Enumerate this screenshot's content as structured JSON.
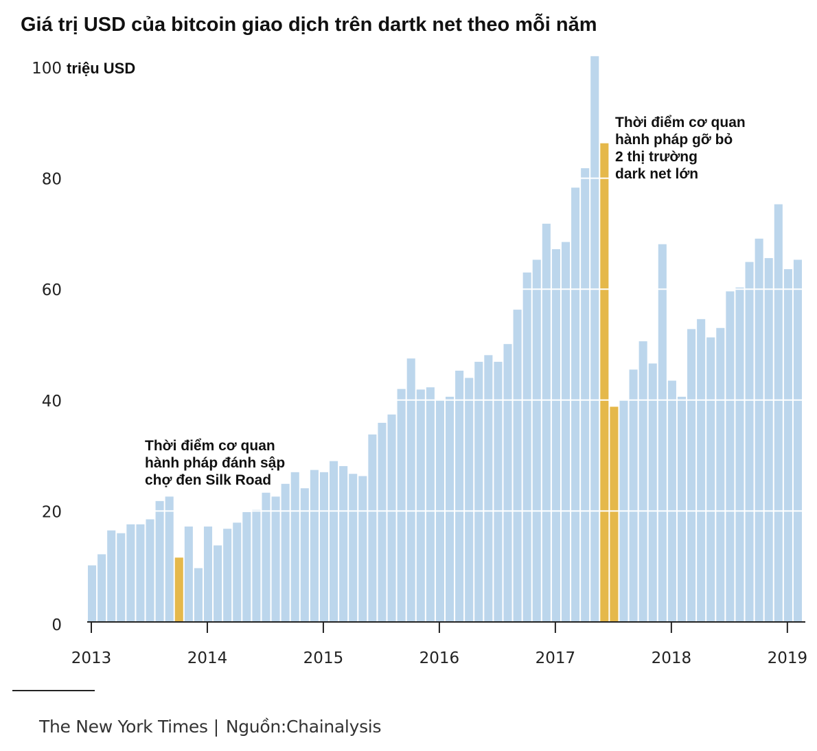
{
  "title": "Giá trị USD của bitcoin giao dịch trên dartk net theo mỗi năm",
  "footer": {
    "publisher": "The New York Times",
    "separator": "|",
    "source_label": "Nguồn:",
    "source_name": "Chainalysis"
  },
  "colors": {
    "bar": "#bcd6ec",
    "highlight": "#e5b84a",
    "gridline": "#ffffff",
    "axis": "#222222"
  },
  "chart_data": {
    "type": "bar",
    "title": "Giá trị USD của bitcoin giao dịch trên dartk net theo mỗi năm",
    "ylabel": "triệu USD",
    "xlabel": "",
    "ylim": [
      0,
      102
    ],
    "yticks": [
      {
        "value": 0,
        "label": "0"
      },
      {
        "value": 20,
        "label": "20"
      },
      {
        "value": 40,
        "label": "40"
      },
      {
        "value": 60,
        "label": "60"
      },
      {
        "value": 80,
        "label": "80"
      },
      {
        "value": 100,
        "label": "100"
      }
    ],
    "xticks": [
      {
        "index": 0,
        "label": "2013"
      },
      {
        "index": 12,
        "label": "2014"
      },
      {
        "index": 24,
        "label": "2015"
      },
      {
        "index": 36,
        "label": "2016"
      },
      {
        "index": 48,
        "label": "2017"
      },
      {
        "index": 60,
        "label": "2018"
      },
      {
        "index": 72,
        "label": "2019"
      }
    ],
    "grid": true,
    "frequency": "monthly",
    "start": "2013-01",
    "values": [
      10.2,
      12.2,
      16.5,
      16.0,
      17.6,
      17.6,
      18.5,
      21.8,
      22.6,
      11.6,
      17.2,
      9.7,
      17.2,
      13.8,
      16.8,
      17.9,
      19.8,
      20.2,
      23.3,
      22.6,
      24.9,
      27.0,
      24.1,
      27.4,
      27.0,
      29.0,
      28.1,
      26.7,
      26.3,
      33.8,
      35.9,
      37.4,
      42.0,
      47.5,
      41.9,
      42.3,
      40.1,
      40.6,
      45.3,
      44.0,
      46.9,
      48.1,
      46.9,
      50.1,
      56.3,
      63.0,
      65.3,
      71.8,
      67.2,
      68.5,
      78.3,
      81.8,
      102.0,
      86.3,
      38.8,
      40.1,
      45.5,
      50.6,
      46.6,
      68.1,
      43.5,
      40.6,
      52.8,
      54.6,
      51.3,
      53.0,
      59.6,
      60.3,
      64.9,
      69.1,
      65.6,
      75.3,
      63.6,
      65.3
    ],
    "highlight_indices": [
      9,
      53,
      54
    ],
    "annotations": [
      {
        "lines": [
          "Thời điểm cơ quan",
          "hành pháp đánh sập",
          "chợ đen Silk Road"
        ],
        "bar_index": 9
      },
      {
        "lines": [
          "Thời điểm cơ quan",
          "hành pháp gỡ bỏ",
          "2 thị trường",
          "dark net lớn"
        ],
        "bar_index": 53
      }
    ]
  }
}
